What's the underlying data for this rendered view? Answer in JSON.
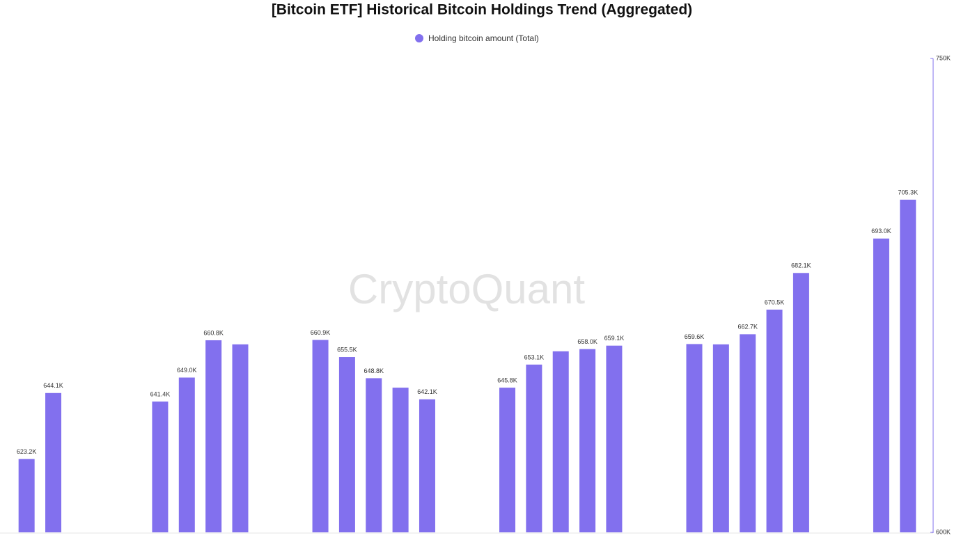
{
  "chart_data": {
    "type": "bar",
    "title": "[Bitcoin ETF] Historical Bitcoin Holdings Trend (Aggregated)",
    "watermark": "CryptoQuant",
    "categories": [
      null,
      null,
      null,
      null,
      null,
      null,
      null,
      null,
      null,
      null,
      null,
      null,
      null,
      null,
      null,
      null,
      null,
      null,
      null,
      null,
      null,
      null,
      null,
      null,
      null,
      null,
      null,
      null,
      null,
      null,
      null,
      null,
      null,
      null
    ],
    "series": [
      {
        "name": "Holding bitcoin amount (Total)",
        "color": "#8270ee",
        "values": [
          623200,
          644100,
          null,
          null,
          null,
          641400,
          649000,
          660800,
          659500,
          null,
          null,
          660900,
          655500,
          648800,
          645800,
          642100,
          null,
          null,
          645800,
          653100,
          657300,
          658000,
          659100,
          null,
          null,
          659600,
          659500,
          662700,
          670500,
          682100,
          null,
          null,
          693000,
          705300
        ],
        "value_labels": [
          "623.2K",
          "644.1K",
          null,
          null,
          null,
          "641.4K",
          "649.0K",
          "660.8K",
          null,
          null,
          null,
          "660.9K",
          "655.5K",
          "648.8K",
          null,
          "642.1K",
          null,
          null,
          "645.8K",
          "653.1K",
          null,
          "658.0K",
          "659.1K",
          null,
          null,
          "659.6K",
          null,
          "662.7K",
          "670.5K",
          "682.1K",
          null,
          null,
          "693.0K",
          "705.3K"
        ]
      }
    ],
    "ylim": [
      600000,
      750000
    ],
    "yticks": [
      {
        "value": 600000,
        "label": "600K"
      },
      {
        "value": 750000,
        "label": "750K"
      }
    ],
    "y_axis_side": "right",
    "grid": false
  }
}
